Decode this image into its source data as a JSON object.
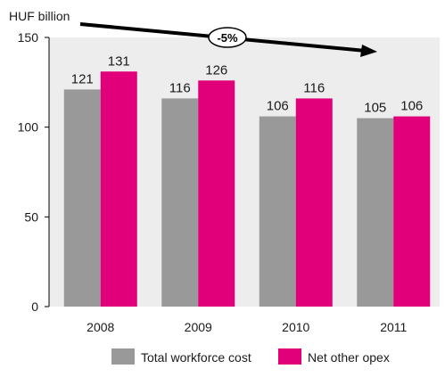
{
  "chart_data": {
    "type": "bar",
    "unit_label": "HUF billion",
    "categories": [
      "2008",
      "2009",
      "2010",
      "2011"
    ],
    "series": [
      {
        "name": "Total workforce cost",
        "values": [
          121,
          116,
          106,
          105
        ],
        "color": "#999999"
      },
      {
        "name": "Net other opex",
        "values": [
          131,
          126,
          116,
          106
        ],
        "color": "#e2007a"
      }
    ],
    "ylim": [
      0,
      150
    ],
    "yticks": [
      0,
      50,
      100,
      150
    ],
    "grid": false,
    "legend_position": "bottom-center",
    "trend_annotation": {
      "label": "-5%",
      "direction": "down"
    }
  }
}
